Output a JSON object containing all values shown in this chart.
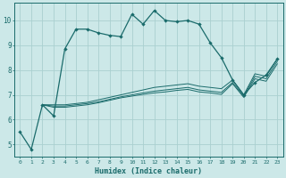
{
  "xlabel": "Humidex (Indice chaleur)",
  "background_color": "#cce8e8",
  "grid_color": "#aad0d0",
  "line_color": "#1a6b6b",
  "xlim": [
    -0.5,
    23.5
  ],
  "ylim": [
    4.5,
    10.7
  ],
  "xticks": [
    0,
    1,
    2,
    3,
    4,
    5,
    6,
    7,
    8,
    9,
    10,
    11,
    12,
    13,
    14,
    15,
    16,
    17,
    18,
    19,
    20,
    21,
    22,
    23
  ],
  "yticks": [
    5,
    6,
    7,
    8,
    9,
    10
  ],
  "curve1_x": [
    0,
    1,
    2,
    3,
    4,
    5,
    6,
    7,
    8,
    9,
    10,
    11,
    12,
    13,
    14,
    15,
    16,
    17,
    18,
    19,
    20,
    21,
    22,
    23
  ],
  "curve1_y": [
    5.5,
    4.8,
    6.6,
    6.15,
    8.85,
    9.65,
    9.65,
    9.5,
    9.4,
    9.35,
    10.25,
    9.85,
    10.4,
    10.0,
    9.95,
    10.0,
    9.85,
    9.1,
    8.5,
    7.6,
    7.0,
    7.5,
    7.8,
    8.45
  ],
  "curve2_x": [
    2,
    3,
    4,
    5,
    6,
    7,
    8,
    9,
    10,
    11,
    12,
    13,
    14,
    15,
    16,
    17,
    18,
    19,
    20,
    21,
    22,
    23
  ],
  "curve2_y": [
    6.6,
    6.6,
    6.6,
    6.65,
    6.7,
    6.8,
    6.9,
    7.0,
    7.1,
    7.2,
    7.3,
    7.35,
    7.4,
    7.45,
    7.35,
    7.3,
    7.25,
    7.6,
    7.0,
    7.85,
    7.75,
    8.45
  ],
  "curve3_x": [
    2,
    3,
    4,
    5,
    6,
    7,
    8,
    9,
    10,
    11,
    12,
    13,
    14,
    15,
    16,
    17,
    18,
    19,
    20,
    21,
    22,
    23
  ],
  "curve3_y": [
    6.6,
    6.55,
    6.55,
    6.6,
    6.65,
    6.72,
    6.82,
    6.92,
    7.0,
    7.08,
    7.15,
    7.2,
    7.25,
    7.3,
    7.2,
    7.15,
    7.1,
    7.5,
    6.95,
    7.75,
    7.65,
    8.35
  ],
  "curve4_x": [
    2,
    3,
    4,
    5,
    6,
    7,
    8,
    9,
    10,
    11,
    12,
    13,
    14,
    15,
    16,
    17,
    18,
    19,
    20,
    21,
    22,
    23
  ],
  "curve4_y": [
    6.6,
    6.5,
    6.5,
    6.55,
    6.6,
    6.68,
    6.78,
    6.88,
    6.95,
    7.02,
    7.08,
    7.12,
    7.18,
    7.22,
    7.12,
    7.08,
    7.02,
    7.45,
    6.9,
    7.65,
    7.55,
    8.25
  ]
}
